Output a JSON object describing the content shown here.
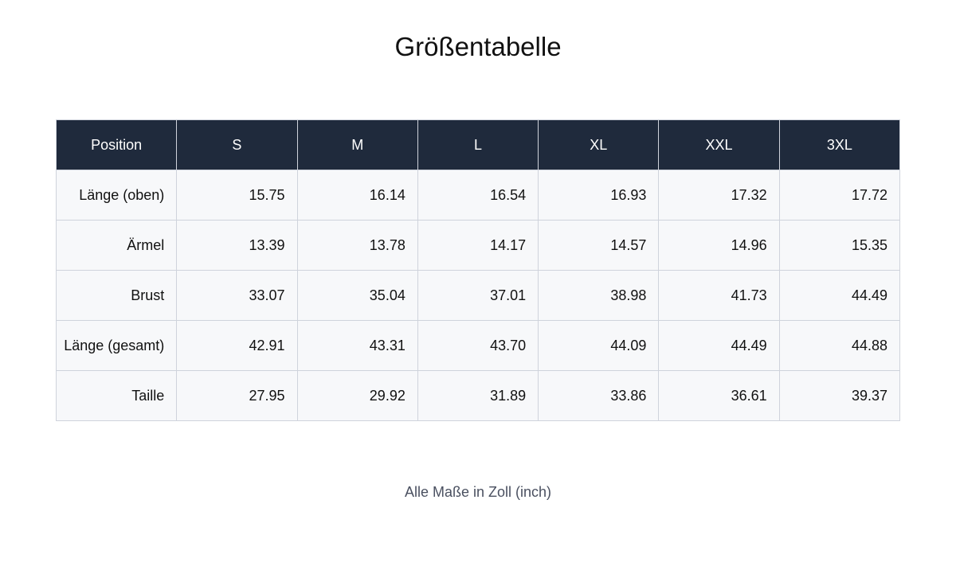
{
  "header": {
    "title": "Größentabelle"
  },
  "table": {
    "columns": [
      "Position",
      "S",
      "M",
      "L",
      "XL",
      "XXL",
      "3XL"
    ],
    "rows": [
      [
        "Länge (oben)",
        "15.75",
        "16.14",
        "16.54",
        "16.93",
        "17.32",
        "17.72"
      ],
      [
        "Ärmel",
        "13.39",
        "13.78",
        "14.17",
        "14.57",
        "14.96",
        "15.35"
      ],
      [
        "Brust",
        "33.07",
        "35.04",
        "37.01",
        "38.98",
        "41.73",
        "44.49"
      ],
      [
        "Länge (gesamt)",
        "42.91",
        "43.31",
        "43.70",
        "44.09",
        "44.49",
        "44.88"
      ],
      [
        "Taille",
        "27.95",
        "29.92",
        "31.89",
        "33.86",
        "36.61",
        "39.37"
      ]
    ]
  },
  "footer": {
    "note": "Alle Maße in Zoll (inch)"
  }
}
